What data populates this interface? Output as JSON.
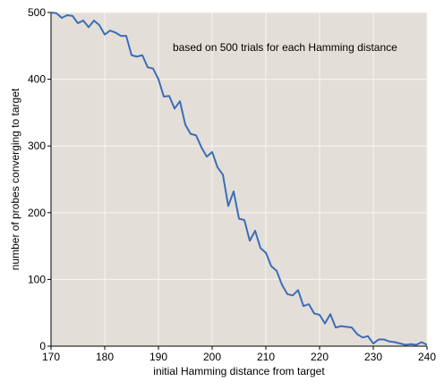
{
  "chart_data": {
    "type": "line",
    "title": "",
    "annotation": "based on 500 trials for each Hamming distance",
    "xlabel": "initial Hamming distance from target",
    "ylabel": "number of probes converging to target",
    "xlim": [
      170,
      240
    ],
    "ylim": [
      0,
      500
    ],
    "xticks": [
      170,
      180,
      190,
      200,
      210,
      220,
      230,
      240
    ],
    "yticks": [
      0,
      100,
      200,
      300,
      400,
      500
    ],
    "grid": true,
    "colors": {
      "background": "#e3dfd8",
      "grid": "#f7f6f3",
      "line": "#3d6db7"
    },
    "series": [
      {
        "x": [
          170,
          171,
          172,
          173,
          174,
          175,
          176,
          177,
          178,
          179,
          180,
          181,
          182,
          183,
          184,
          185,
          186,
          187,
          188,
          189,
          190,
          191,
          192,
          193,
          194,
          195,
          196,
          197,
          198,
          199,
          200,
          201,
          202,
          203,
          204,
          205,
          206,
          207,
          208,
          209,
          210,
          211,
          212,
          213,
          214,
          215,
          216,
          217,
          218,
          219,
          220,
          221,
          222,
          223,
          224,
          225,
          226,
          227,
          228,
          229,
          230,
          231,
          232,
          233,
          234,
          235,
          236,
          237,
          238,
          239,
          240
        ],
        "values": [
          500,
          499,
          492,
          496,
          495,
          484,
          488,
          478,
          488,
          481,
          467,
          473,
          470,
          465,
          465,
          436,
          434,
          436,
          418,
          416,
          400,
          374,
          375,
          356,
          367,
          332,
          318,
          316,
          298,
          284,
          291,
          268,
          257,
          210,
          232,
          191,
          189,
          158,
          173,
          147,
          140,
          120,
          113,
          92,
          78,
          76,
          84,
          60,
          63,
          49,
          47,
          34,
          48,
          28,
          30,
          29,
          28,
          18,
          13,
          15,
          4,
          10,
          10,
          7,
          6,
          4,
          2,
          3,
          2,
          6,
          2
        ]
      }
    ]
  }
}
